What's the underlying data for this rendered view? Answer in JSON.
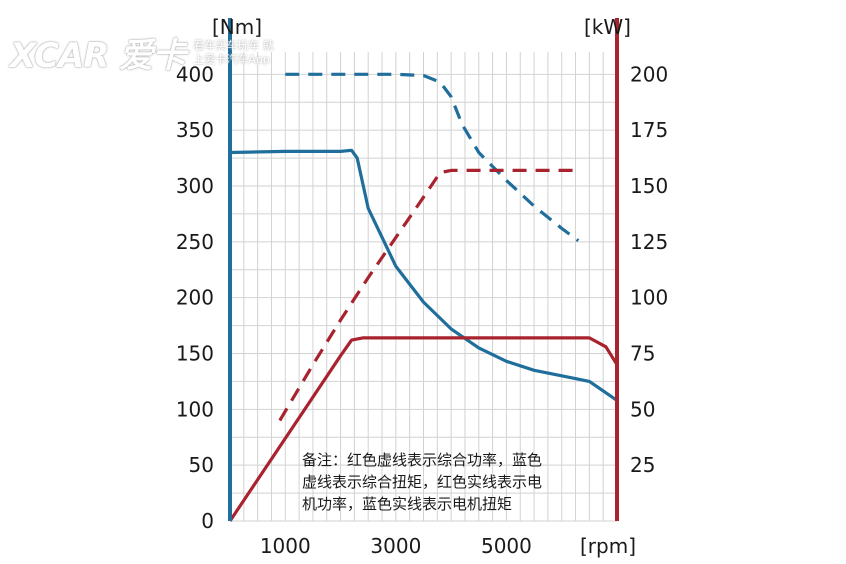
{
  "watermark": {
    "logo": "XCAR 爱卡",
    "line1": "看车买车玩车 就",
    "line2": "上爱卡汽车App"
  },
  "note": "备注：红色虚线表示综合功率，蓝色\n虚线表示综合扭矩，红色实线表示电\n机功率，蓝色实线表示电机扭矩",
  "colors": {
    "blue": "#1f6e9c",
    "red": "#a8232e",
    "grid": "#d2d2d2"
  },
  "chart_data": {
    "type": "line",
    "xlabel": "[rpm]",
    "ylabel_left": "[Nm]",
    "ylabel_right": "[kW]",
    "xlim": [
      0,
      7000
    ],
    "ylim_left": [
      0,
      420
    ],
    "ylim_right": [
      0,
      210
    ],
    "x_ticks": [
      {
        "value": 1000,
        "label": "1000"
      },
      {
        "value": 3000,
        "label": "3000"
      },
      {
        "value": 5000,
        "label": "5000"
      }
    ],
    "y_ticks_left": [
      {
        "value": 0,
        "label": "0"
      },
      {
        "value": 50,
        "label": "50"
      },
      {
        "value": 100,
        "label": "100"
      },
      {
        "value": 150,
        "label": "150"
      },
      {
        "value": 200,
        "label": "200"
      },
      {
        "value": 250,
        "label": "250"
      },
      {
        "value": 300,
        "label": "300"
      },
      {
        "value": 350,
        "label": "350"
      },
      {
        "value": 400,
        "label": "400"
      }
    ],
    "y_ticks_right": [
      {
        "value": 25,
        "label": "25"
      },
      {
        "value": 50,
        "label": "50"
      },
      {
        "value": 75,
        "label": "75"
      },
      {
        "value": 100,
        "label": "100"
      },
      {
        "value": 125,
        "label": "125"
      },
      {
        "value": 150,
        "label": "150"
      },
      {
        "value": 175,
        "label": "175"
      },
      {
        "value": 200,
        "label": "200"
      }
    ],
    "grid": true,
    "series": [
      {
        "style": "blue-dashed",
        "axis": "left",
        "x": [
          1000,
          2000,
          3000,
          3500,
          3800,
          4000,
          4200,
          4500,
          5000,
          5500,
          6000,
          6300
        ],
        "y": [
          400,
          400,
          400,
          399,
          393,
          380,
          355,
          330,
          305,
          282,
          262,
          251
        ]
      },
      {
        "style": "blue-solid",
        "axis": "left",
        "x": [
          0,
          1000,
          2000,
          2200,
          2300,
          2500,
          3000,
          3500,
          4000,
          4500,
          5000,
          5500,
          6000,
          6500,
          7000
        ],
        "y": [
          330,
          331,
          331,
          332,
          325,
          280,
          228,
          196,
          172,
          155,
          143,
          135,
          130,
          125,
          108
        ]
      },
      {
        "style": "red-dashed",
        "axis": "right",
        "x": [
          900,
          1500,
          2000,
          2500,
          3000,
          3500,
          3800,
          4000,
          5000,
          6000,
          6300
        ],
        "y": [
          45,
          70,
          90,
          109,
          127,
          145,
          156,
          157,
          157,
          157,
          157
        ]
      },
      {
        "style": "red-solid",
        "axis": "right",
        "x": [
          0,
          1000,
          2000,
          2200,
          2400,
          3000,
          4000,
          5000,
          6000,
          6500,
          6800,
          7000
        ],
        "y": [
          0,
          37,
          74,
          81,
          82,
          82,
          82,
          82,
          82,
          82,
          78,
          70
        ]
      }
    ]
  }
}
